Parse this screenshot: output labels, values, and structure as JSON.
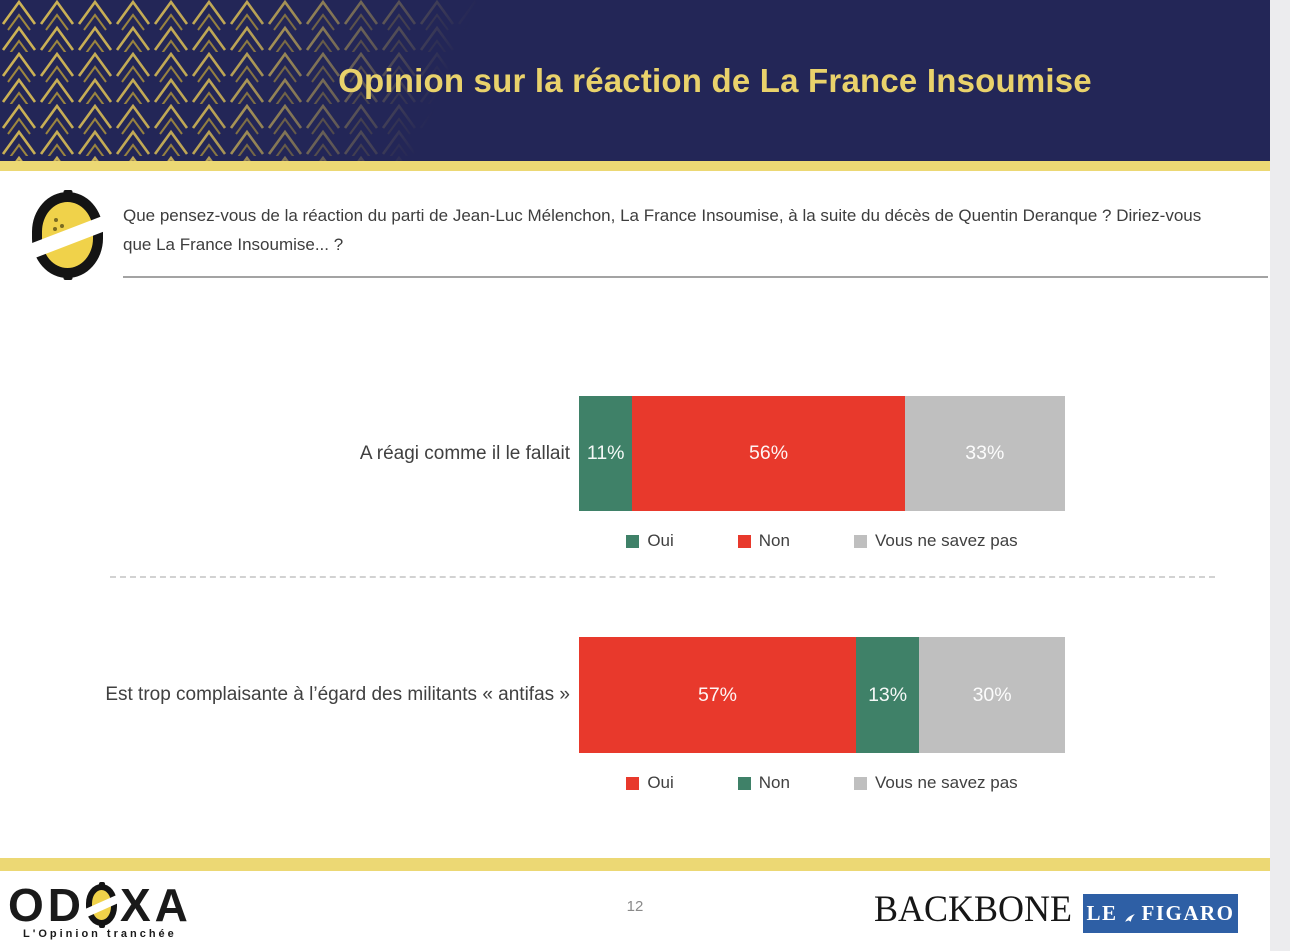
{
  "colors": {
    "navy": "#232657",
    "gold": "#ecd874",
    "title_gold": "#e9d26b",
    "oui_green": "#3f8168",
    "non_red": "#e8392c",
    "nsp_gray": "#bfbfbf",
    "figaro_blue": "#2e5fa5"
  },
  "header": {
    "title": "Opinion sur la réaction de La France Insoumise"
  },
  "question": {
    "text": "Que pensez-vous de la réaction du parti de Jean-Luc Mélenchon, La France Insoumise, à la suite du décès de Quentin Deranque ? Diriez-vous que La France Insoumise... ?"
  },
  "chart_data": [
    {
      "type": "bar",
      "orientation": "horizontal",
      "stacked": true,
      "category": "A réagi comme il le fallait",
      "value_suffix": "%",
      "xlim": [
        0,
        100
      ],
      "legend_position": "bottom",
      "segments": [
        {
          "label": "Oui",
          "value": 11,
          "color": "#3f8168"
        },
        {
          "label": "Non",
          "value": 56,
          "color": "#e8392c"
        },
        {
          "label": "Vous ne savez pas",
          "value": 33,
          "color": "#bfbfbf"
        }
      ]
    },
    {
      "type": "bar",
      "orientation": "horizontal",
      "stacked": true,
      "category": "Est trop complaisante à l’égard des militants « antifas »",
      "value_suffix": "%",
      "xlim": [
        0,
        100
      ],
      "legend_position": "bottom",
      "segments": [
        {
          "label": "Oui",
          "value": 57,
          "color": "#e8392c"
        },
        {
          "label": "Non",
          "value": 13,
          "color": "#3f8168"
        },
        {
          "label": "Vous ne savez pas",
          "value": 30,
          "color": "#bfbfbf"
        }
      ]
    }
  ],
  "footer": {
    "odoxa_left": "OD",
    "odoxa_right": "XA",
    "odoxa_tagline": "L'Opinion tranchée",
    "page_number": "12",
    "backbone": "BACKBONE",
    "figaro_le": "LE",
    "figaro_rest": "FIGARO"
  }
}
